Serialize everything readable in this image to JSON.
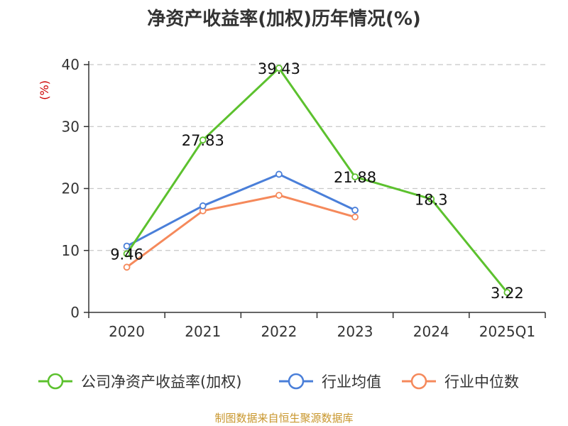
{
  "chart_data": {
    "type": "line",
    "title": "净资产收益率(加权)历年情况(%)",
    "ylabel": "(%)",
    "xlabel": "",
    "categories": [
      "2020",
      "2021",
      "2022",
      "2023",
      "2024",
      "2025Q1"
    ],
    "ylim": [
      0,
      40
    ],
    "yticks": [
      0,
      10,
      20,
      30,
      40
    ],
    "grid": true,
    "legend_placement": "bottom",
    "series": [
      {
        "name": "公司净资产收益率(加权)",
        "color": "#5cc12e",
        "values": [
          9.46,
          27.83,
          39.43,
          21.88,
          18.3,
          3.22
        ],
        "labels": [
          "9.46",
          "27.83",
          "39.43",
          "21.88",
          "18.3",
          "3.22"
        ]
      },
      {
        "name": "行业均值",
        "color": "#4a7fd9",
        "values": [
          10.7,
          17.2,
          22.3,
          16.5,
          null,
          null
        ]
      },
      {
        "name": "行业中位数",
        "color": "#f5895b",
        "values": [
          7.3,
          16.4,
          18.9,
          15.4,
          null,
          null
        ]
      }
    ]
  },
  "source": "制图数据来自恒生聚源数据库"
}
